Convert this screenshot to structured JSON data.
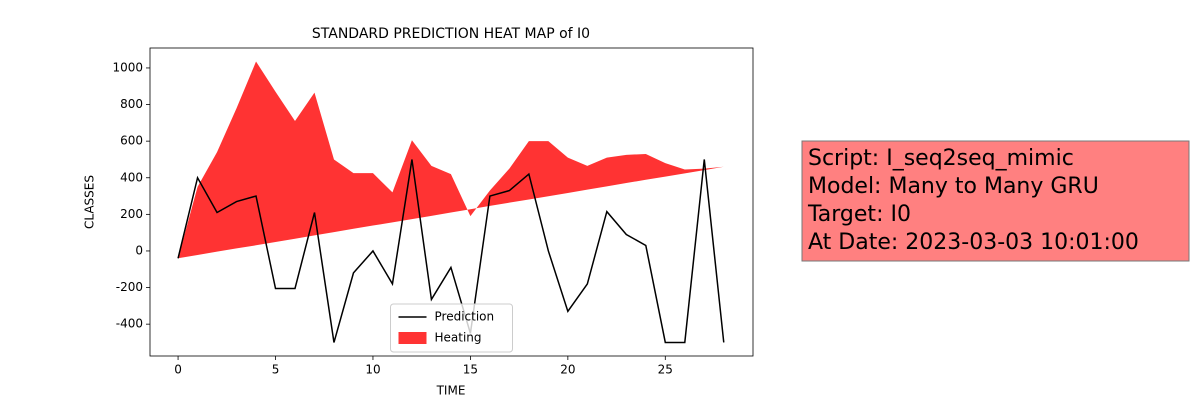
{
  "chart_data": {
    "type": "line_area",
    "title": "STANDARD PREDICTION HEAT MAP of I0",
    "xlabel": "TIME",
    "ylabel": "CLASSES",
    "x": [
      0,
      1,
      2,
      3,
      4,
      5,
      6,
      7,
      8,
      9,
      10,
      11,
      12,
      13,
      14,
      15,
      16,
      17,
      18,
      19,
      20,
      21,
      22,
      23,
      24,
      25,
      26,
      27,
      28
    ],
    "series": [
      {
        "name": "Prediction",
        "type": "line",
        "color": "#000000",
        "values": [
          -40,
          400,
          210,
          270,
          300,
          -205,
          -205,
          210,
          -500,
          -120,
          0,
          -180,
          500,
          -265,
          -90,
          -450,
          300,
          330,
          420,
          0,
          -330,
          -180,
          215,
          90,
          30,
          -500,
          -500,
          500,
          -500
        ]
      },
      {
        "name": "Heating",
        "type": "area",
        "color": "#ff3333",
        "values": [
          -40,
          350,
          540,
          780,
          1035,
          870,
          710,
          865,
          500,
          425,
          425,
          320,
          605,
          465,
          420,
          190,
          330,
          450,
          600,
          600,
          510,
          465,
          510,
          525,
          530,
          480,
          445,
          450,
          460
        ],
        "base": [
          -40,
          -22,
          -4,
          14,
          31,
          49,
          67,
          85,
          103,
          121,
          139,
          156,
          174,
          192,
          210,
          228,
          246,
          264,
          281,
          299,
          317,
          335,
          353,
          371,
          389,
          406,
          424,
          442,
          460
        ]
      }
    ],
    "xlim": [
      -1.44,
      29.5
    ],
    "ylim": [
      -574,
      1109
    ],
    "xticks": [
      0,
      5,
      10,
      15,
      20,
      25
    ],
    "yticks": [
      -400,
      -200,
      0,
      200,
      400,
      600,
      800,
      1000
    ],
    "legend": "lower center",
    "annotation_lines": [
      "Script: I_seq2seq_mimic",
      "Model: Many to Many GRU",
      "Target: I0",
      "At Date: 2023-03-03 10:01:00"
    ]
  }
}
